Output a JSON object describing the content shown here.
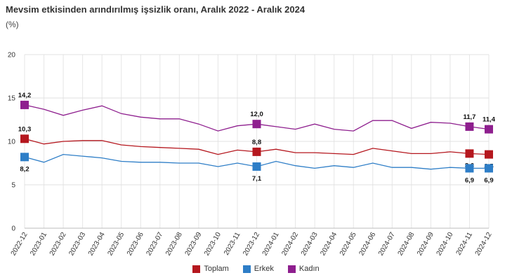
{
  "title": "Mevsim etkisinden arındırılmış işsizlik oranı, Aralık 2022 - Aralık 2024",
  "subtitle": "(%)",
  "chart_data": {
    "type": "line",
    "title": "Mevsim etkisinden arındırılmış işsizlik oranı, Aralık 2022 - Aralık 2024",
    "ylabel": "(%)",
    "ylim": [
      0,
      20
    ],
    "yticks": [
      "0",
      "5",
      "10",
      "15",
      "20"
    ],
    "grid": true,
    "legend_position": "bottom",
    "categories": [
      "2022-12",
      "2023-01",
      "2023-02",
      "2023-03",
      "2023-04",
      "2023-05",
      "2023-06",
      "2023-07",
      "2023-08",
      "2023-09",
      "2023-10",
      "2023-11",
      "2023-12",
      "2024-01",
      "2024-02",
      "2024-03",
      "2024-04",
      "2024-05",
      "2024-06",
      "2024-07",
      "2024-08",
      "2024-09",
      "2024-10",
      "2024-11",
      "2024-12"
    ],
    "series": [
      {
        "name": "Toplam",
        "color": "#b5171e",
        "values": [
          10.3,
          9.7,
          10.0,
          10.1,
          10.1,
          9.6,
          9.4,
          9.3,
          9.2,
          9.1,
          8.5,
          9.0,
          8.8,
          9.1,
          8.7,
          8.7,
          8.6,
          8.5,
          9.2,
          8.9,
          8.6,
          8.6,
          8.8,
          8.6,
          8.5
        ],
        "data_labels": [
          {
            "index": 0,
            "text": "10,3",
            "pos": "above"
          },
          {
            "index": 12,
            "text": "8,8",
            "pos": "above"
          },
          {
            "index": 23,
            "text": "8,6",
            "pos": "below"
          },
          {
            "index": 24,
            "text": "8,5",
            "pos": "below"
          }
        ]
      },
      {
        "name": "Erkek",
        "color": "#2e7ec7",
        "values": [
          8.2,
          7.6,
          8.5,
          8.3,
          8.1,
          7.7,
          7.6,
          7.6,
          7.5,
          7.5,
          7.1,
          7.5,
          7.1,
          7.7,
          7.2,
          6.9,
          7.2,
          7.0,
          7.5,
          7.0,
          7.0,
          6.8,
          7.0,
          6.9,
          6.9
        ],
        "data_labels": [
          {
            "index": 0,
            "text": "8,2",
            "pos": "below"
          },
          {
            "index": 12,
            "text": "7,1",
            "pos": "below"
          },
          {
            "index": 23,
            "text": "6,9",
            "pos": "below"
          },
          {
            "index": 24,
            "text": "6,9",
            "pos": "below"
          }
        ]
      },
      {
        "name": "Kadın",
        "color": "#8e1f8e",
        "values": [
          14.2,
          13.7,
          13.0,
          13.6,
          14.1,
          13.2,
          12.8,
          12.6,
          12.6,
          12.0,
          11.2,
          11.8,
          12.0,
          11.7,
          11.4,
          12.0,
          11.4,
          11.2,
          12.4,
          12.4,
          11.5,
          12.2,
          12.1,
          11.7,
          11.4
        ],
        "data_labels": [
          {
            "index": 0,
            "text": "14,2",
            "pos": "above"
          },
          {
            "index": 12,
            "text": "12,0",
            "pos": "above"
          },
          {
            "index": 23,
            "text": "11,7",
            "pos": "above"
          },
          {
            "index": 24,
            "text": "11,4",
            "pos": "above"
          }
        ]
      }
    ]
  }
}
